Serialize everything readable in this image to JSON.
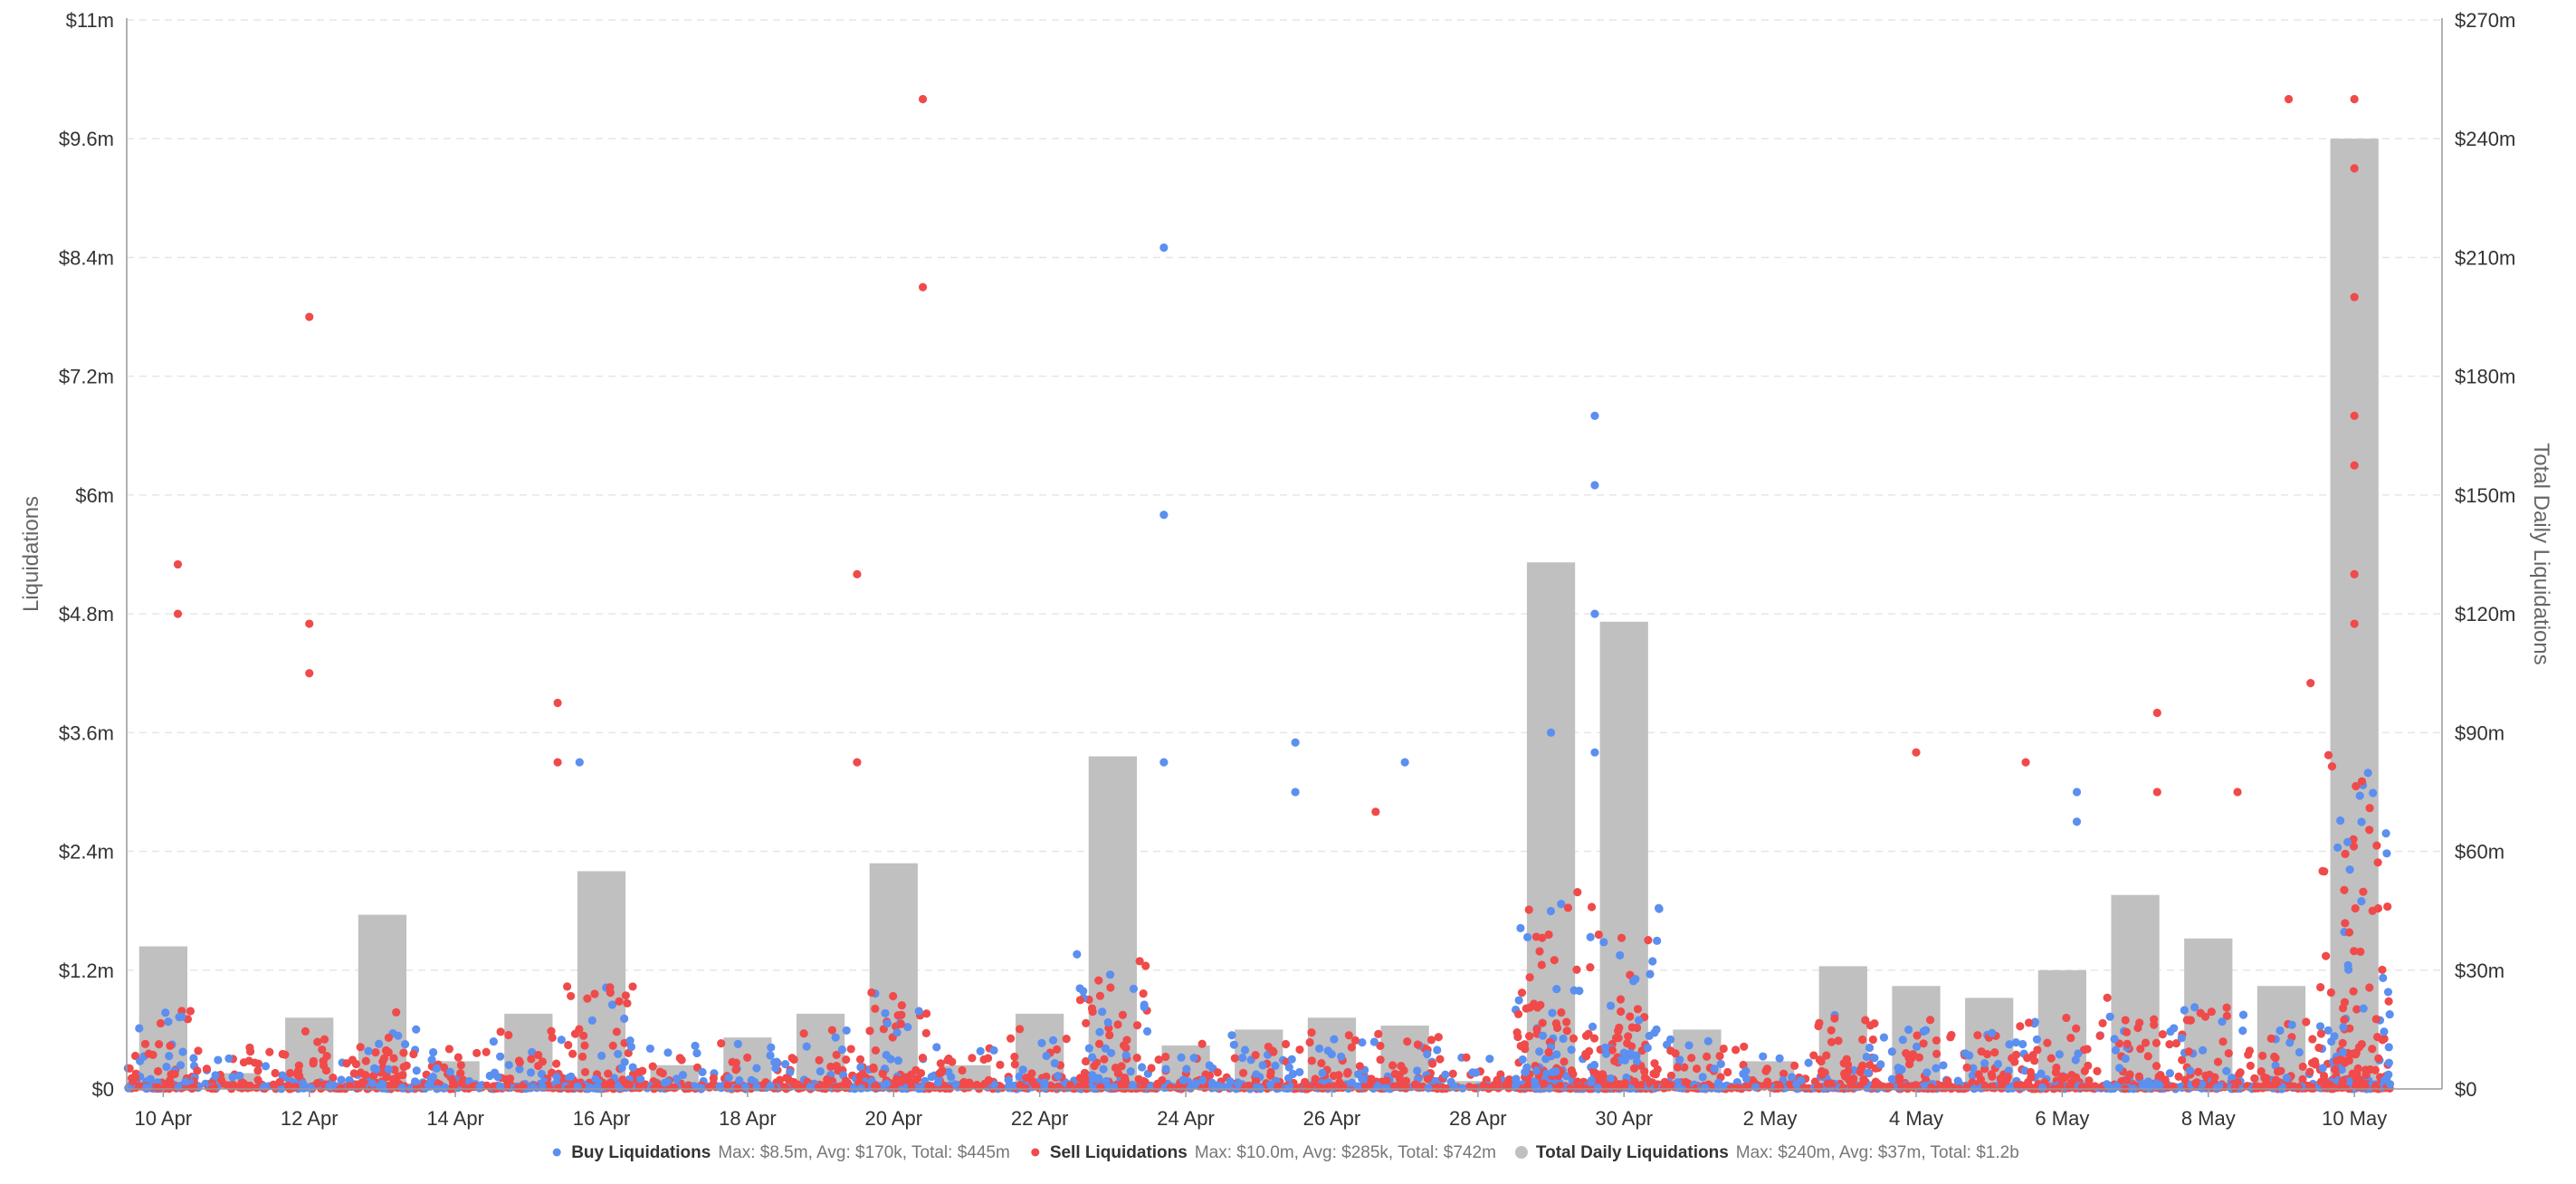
{
  "chart_data": {
    "type": "bar+scatter",
    "title": "",
    "ylabel_left": "Liquidations",
    "ylabel_right": "Total Daily Liquidations",
    "yticks_left": [
      "$0",
      "$1.2m",
      "$2.4m",
      "$3.6m",
      "$4.8m",
      "$6m",
      "$7.2m",
      "$8.4m",
      "$9.6m",
      "$11m"
    ],
    "yticks_right": [
      "$0",
      "$30m",
      "$60m",
      "$90m",
      "$120m",
      "$150m",
      "$180m",
      "$210m",
      "$240m",
      "$270m"
    ],
    "ylim_left_m": [
      0,
      10.8
    ],
    "ylim_right_m": [
      0,
      270
    ],
    "xlim_days": [
      9.5,
      41.2
    ],
    "xticks": [
      {
        "label": "10 Apr",
        "day": 10
      },
      {
        "label": "12 Apr",
        "day": 12
      },
      {
        "label": "14 Apr",
        "day": 14
      },
      {
        "label": "16 Apr",
        "day": 16
      },
      {
        "label": "18 Apr",
        "day": 18
      },
      {
        "label": "20 Apr",
        "day": 20
      },
      {
        "label": "22 Apr",
        "day": 22
      },
      {
        "label": "24 Apr",
        "day": 24
      },
      {
        "label": "26 Apr",
        "day": 26
      },
      {
        "label": "28 Apr",
        "day": 28
      },
      {
        "label": "30 Apr",
        "day": 30
      },
      {
        "label": "2 May",
        "day": 32
      },
      {
        "label": "4 May",
        "day": 34
      },
      {
        "label": "6 May",
        "day": 36
      },
      {
        "label": "8 May",
        "day": 38
      },
      {
        "label": "10 May",
        "day": 40
      }
    ],
    "grid": true,
    "legend_placement": "bottom-center",
    "colors": {
      "buy": "#5b8ff0",
      "sell": "#f04a4a",
      "total": "#c0c0c0"
    },
    "legend": [
      {
        "key": "buy",
        "name": "Buy Liquidations",
        "stats": "Max: $8.5m, Avg: $170k, Total: $445m"
      },
      {
        "key": "sell",
        "name": "Sell Liquidations",
        "stats": "Max: $10.0m, Avg: $285k, Total: $742m"
      },
      {
        "key": "total",
        "name": "Total Daily Liquidations",
        "stats": "Max: $240m, Avg: $37m, Total: $1.2b"
      }
    ],
    "total_daily_m": {
      "days": [
        10,
        11,
        12,
        13,
        14,
        15,
        16,
        17,
        18,
        19,
        20,
        21,
        22,
        23,
        24,
        25,
        26,
        27,
        28,
        29,
        30,
        31,
        32,
        33,
        34,
        35,
        36,
        37,
        38,
        39,
        40
      ],
      "values": [
        36,
        4,
        18,
        44,
        7,
        19,
        55,
        6,
        13,
        19,
        57,
        6,
        19,
        84,
        11,
        15,
        18,
        16,
        2,
        133,
        118,
        15,
        7,
        31,
        26,
        23,
        30,
        49,
        38,
        26,
        240
      ]
    },
    "notable_points_m": {
      "buy": [
        [
          23.7,
          8.5
        ],
        [
          23.7,
          5.8
        ],
        [
          29.6,
          6.8
        ],
        [
          29.6,
          6.1
        ],
        [
          29.6,
          4.8
        ],
        [
          29.0,
          3.6
        ],
        [
          23.7,
          3.3
        ],
        [
          15.7,
          3.3
        ],
        [
          25.5,
          3.5
        ],
        [
          25.5,
          3.0
        ],
        [
          27.0,
          3.3
        ],
        [
          29.6,
          3.4
        ],
        [
          36.2,
          3.0
        ],
        [
          36.2,
          2.7
        ]
      ],
      "sell": [
        [
          20.4,
          10.0
        ],
        [
          20.4,
          8.1
        ],
        [
          12.0,
          7.8
        ],
        [
          10.2,
          5.3
        ],
        [
          10.2,
          4.8
        ],
        [
          19.5,
          5.2
        ],
        [
          12.0,
          4.7
        ],
        [
          12.0,
          4.2
        ],
        [
          15.4,
          3.9
        ],
        [
          15.4,
          3.3
        ],
        [
          19.5,
          3.3
        ],
        [
          26.6,
          2.8
        ],
        [
          34.0,
          3.4
        ],
        [
          35.5,
          3.3
        ],
        [
          37.3,
          3.8
        ],
        [
          37.3,
          3.0
        ],
        [
          38.4,
          3.0
        ],
        [
          39.1,
          10.0
        ],
        [
          39.4,
          4.1
        ],
        [
          40.0,
          10.0
        ],
        [
          40.0,
          9.3
        ],
        [
          40.0,
          8.0
        ],
        [
          40.0,
          6.8
        ],
        [
          40.0,
          6.3
        ],
        [
          40.0,
          5.2
        ],
        [
          40.0,
          4.7
        ]
      ]
    }
  }
}
